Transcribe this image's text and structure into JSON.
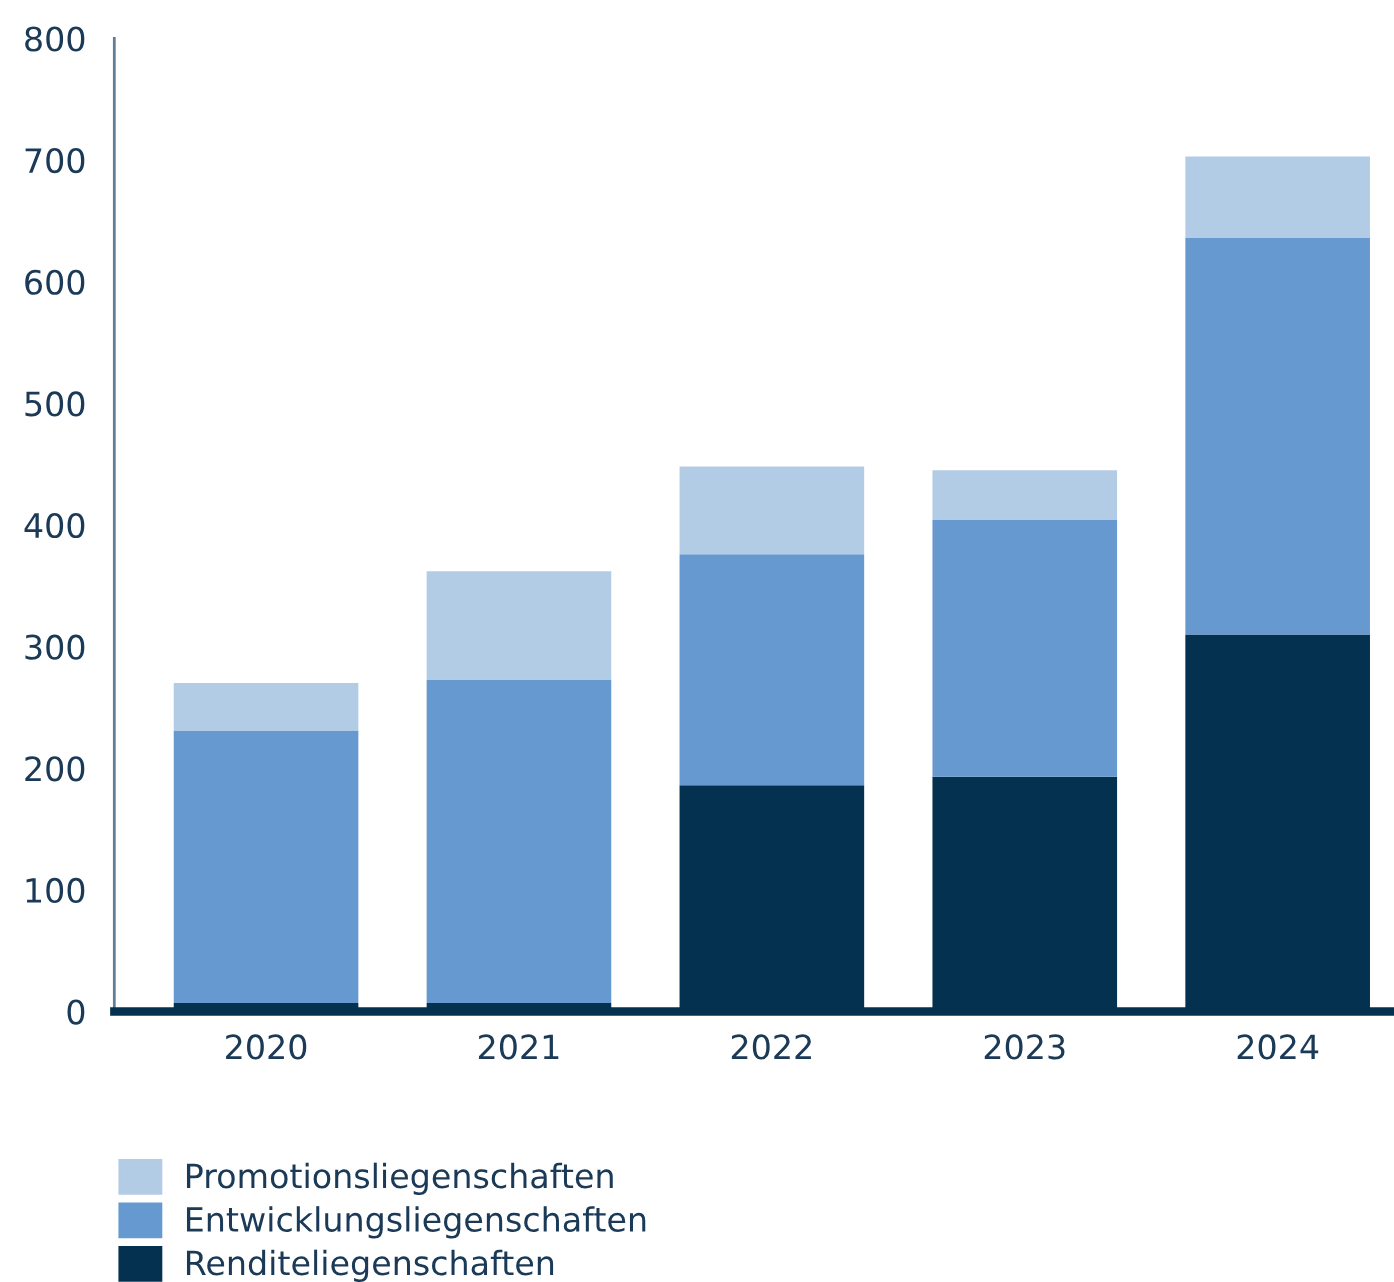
{
  "chart_data": {
    "type": "bar",
    "stacked": true,
    "categories": [
      "2020",
      "2021",
      "2022",
      "2023",
      "2024"
    ],
    "series": [
      {
        "name": "Renditeliegenschaften",
        "color": "#053150",
        "values": [
          7,
          7,
          186,
          193,
          310
        ]
      },
      {
        "name": "Entwicklungsliegenschaften",
        "color": "#6699d0",
        "values": [
          224,
          266,
          190,
          211,
          326
        ]
      },
      {
        "name": "Promotionsliegenschaften",
        "color": "#b3cce6",
        "values": [
          39,
          89,
          72,
          41,
          67
        ]
      }
    ],
    "ylim": [
      0,
      800
    ],
    "yticks": [
      0,
      100,
      200,
      300,
      400,
      500,
      600,
      700,
      800
    ],
    "grid": false,
    "legend": "bottom"
  }
}
